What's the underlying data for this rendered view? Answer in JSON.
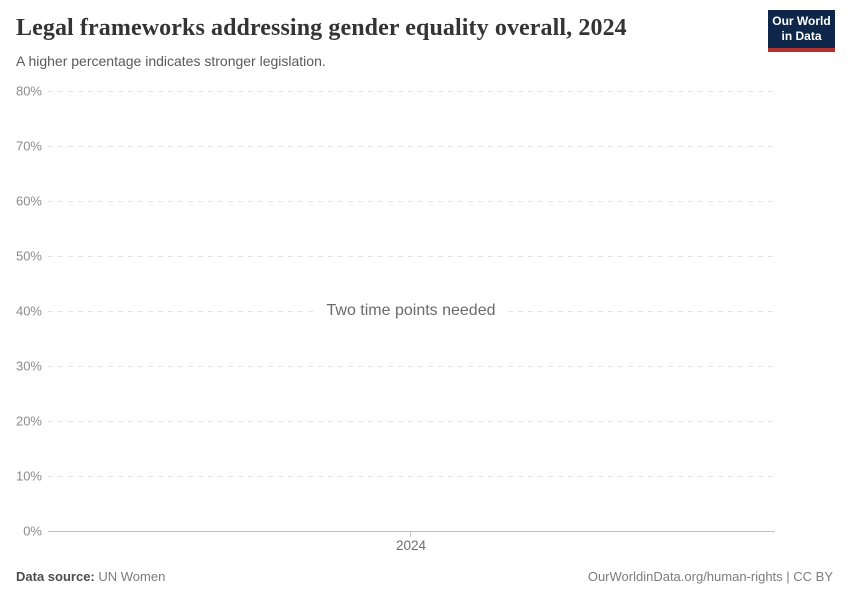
{
  "header": {
    "title": "Legal frameworks addressing gender equality overall, 2024",
    "subtitle": "A higher percentage indicates stronger legislation.",
    "logo": {
      "line1": "Our World",
      "line2": "in Data",
      "bg_color": "#0d264a",
      "stripe_color": "#b5332e"
    }
  },
  "chart_data": {
    "type": "line",
    "title": "Legal frameworks addressing gender equality overall, 2024",
    "subtitle": "A higher percentage indicates stronger legislation.",
    "series": [],
    "message": "Two time points needed",
    "ylim": [
      0,
      80
    ],
    "yticks": [
      "0%",
      "10%",
      "20%",
      "30%",
      "40%",
      "50%",
      "60%",
      "70%",
      "80%"
    ],
    "xticks": [
      "2024"
    ],
    "grid": "horizontal-dashed",
    "legend": "none"
  },
  "footer": {
    "datasource_label": "Data source:",
    "datasource_value": "UN Women",
    "attribution": "OurWorldinData.org/human-rights | CC BY"
  },
  "colors": {
    "title": "#343434",
    "subtitle": "#595959",
    "tick_label": "#8b8b8b",
    "gridline": "#e4e4e4",
    "axis_line": "#c0c0c0",
    "message": "#6a6a6a",
    "footer_text": "#7c7c7c",
    "logo_bg": "#0d264a",
    "logo_stripe": "#b5332e"
  }
}
